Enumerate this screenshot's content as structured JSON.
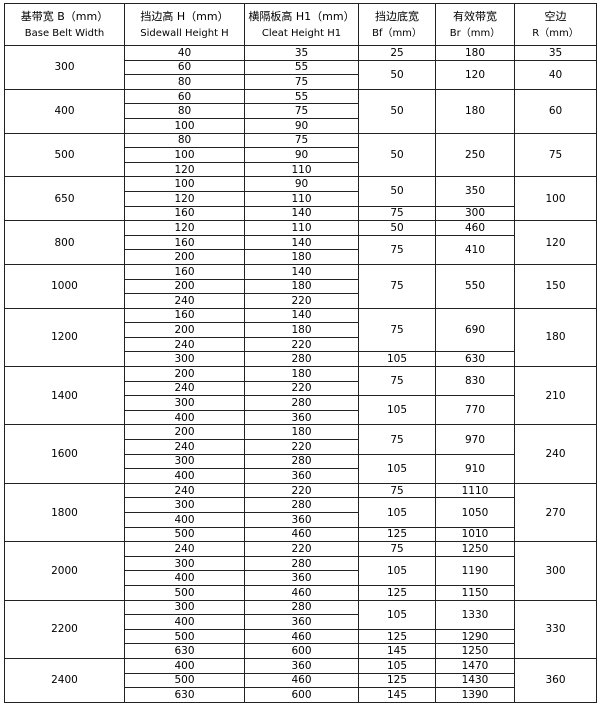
{
  "table": {
    "header": [
      [
        "基带宽 B（mm）",
        "Base Belt Width"
      ],
      [
        "挡边高 H（mm）",
        "Sidewall Height H"
      ],
      [
        "横隔板高 H1（mm）",
        "Cleat Height H1"
      ],
      [
        "挡边底宽",
        "Bf（mm）"
      ],
      [
        "有效带宽",
        "Br（mm）"
      ],
      [
        "空边",
        "R（mm）"
      ]
    ],
    "groups": [
      {
        "width": 300,
        "h": [
          40,
          60,
          80
        ],
        "h1": [
          35,
          55,
          75
        ],
        "bf": [
          25,
          50,
          null
        ],
        "br": [
          180,
          120,
          null
        ],
        "r": [
          35,
          40,
          null
        ]
      },
      {
        "width": 400,
        "h": [
          60,
          80,
          100
        ],
        "h1": [
          55,
          75,
          90
        ],
        "bf": [
          50,
          null,
          null
        ],
        "br": [
          180,
          null,
          null
        ],
        "r": [
          60,
          null,
          null
        ]
      },
      {
        "width": 500,
        "h": [
          80,
          100,
          120
        ],
        "h1": [
          75,
          90,
          110
        ],
        "bf": [
          50,
          null,
          null
        ],
        "br": [
          250,
          null,
          null
        ],
        "r": [
          75,
          null,
          null
        ]
      },
      {
        "width": 650,
        "h": [
          100,
          120,
          160
        ],
        "h1": [
          90,
          110,
          140
        ],
        "bf": [
          50,
          null,
          75
        ],
        "br": [
          350,
          null,
          300
        ],
        "r": [
          100,
          null,
          null
        ]
      },
      {
        "width": 800,
        "h": [
          120,
          160,
          200
        ],
        "h1": [
          110,
          140,
          180
        ],
        "bf": [
          50,
          75,
          null
        ],
        "br": [
          460,
          410,
          null
        ],
        "r": [
          120,
          null,
          null
        ]
      },
      {
        "width": 1000,
        "h": [
          160,
          200,
          240
        ],
        "h1": [
          140,
          180,
          220
        ],
        "bf": [
          75,
          null,
          null
        ],
        "br": [
          550,
          null,
          null
        ],
        "r": [
          150,
          null,
          null
        ]
      },
      {
        "width": 1200,
        "h": [
          160,
          200,
          240,
          300
        ],
        "h1": [
          140,
          180,
          220,
          280
        ],
        "bf": [
          75,
          null,
          null,
          105
        ],
        "br": [
          690,
          null,
          null,
          630
        ],
        "r": [
          180,
          null,
          null,
          null
        ]
      },
      {
        "width": 1400,
        "h": [
          200,
          240,
          300,
          400
        ],
        "h1": [
          180,
          220,
          280,
          360
        ],
        "bf": [
          75,
          null,
          105,
          null
        ],
        "br": [
          830,
          null,
          770,
          null
        ],
        "r": [
          210,
          null,
          null,
          null
        ]
      },
      {
        "width": 1600,
        "h": [
          200,
          240,
          300,
          400
        ],
        "h1": [
          180,
          220,
          280,
          360
        ],
        "bf": [
          75,
          null,
          105,
          null
        ],
        "br": [
          970,
          null,
          910,
          null
        ],
        "r": [
          240,
          null,
          null,
          null
        ]
      },
      {
        "width": 1800,
        "h": [
          240,
          300,
          400,
          500
        ],
        "h1": [
          220,
          280,
          360,
          460
        ],
        "bf": [
          75,
          105,
          null,
          125
        ],
        "br": [
          1110,
          1050,
          null,
          1010
        ],
        "r": [
          270,
          null,
          null,
          null
        ]
      },
      {
        "width": 2000,
        "h": [
          240,
          300,
          400,
          500
        ],
        "h1": [
          220,
          280,
          360,
          460
        ],
        "bf": [
          75,
          105,
          null,
          125
        ],
        "br": [
          1250,
          1190,
          null,
          1150
        ],
        "r": [
          300,
          null,
          null,
          null
        ]
      },
      {
        "width": 2200,
        "h": [
          300,
          400,
          500,
          630
        ],
        "h1": [
          280,
          360,
          460,
          600
        ],
        "bf": [
          105,
          null,
          125,
          145
        ],
        "br": [
          1330,
          null,
          1290,
          1250
        ],
        "r": [
          330,
          null,
          null,
          null
        ]
      },
      {
        "width": 2400,
        "h": [
          400,
          500,
          630
        ],
        "h1": [
          360,
          460,
          600
        ],
        "bf": [
          105,
          125,
          145
        ],
        "br": [
          1470,
          1430,
          1390
        ],
        "r": [
          360,
          null,
          null
        ]
      }
    ]
  }
}
